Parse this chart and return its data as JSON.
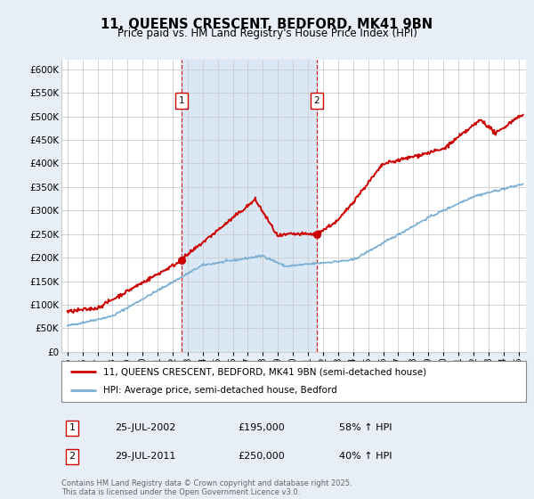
{
  "title": "11, QUEENS CRESCENT, BEDFORD, MK41 9BN",
  "subtitle": "Price paid vs. HM Land Registry's House Price Index (HPI)",
  "legend_line1": "11, QUEENS CRESCENT, BEDFORD, MK41 9BN (semi-detached house)",
  "legend_line2": "HPI: Average price, semi-detached house, Bedford",
  "ann1_date": "25-JUL-2002",
  "ann1_price": "£195,000",
  "ann1_note": "58% ↑ HPI",
  "ann2_date": "29-JUL-2011",
  "ann2_price": "£250,000",
  "ann2_note": "40% ↑ HPI",
  "copyright": "Contains HM Land Registry data © Crown copyright and database right 2025.\nThis data is licensed under the Open Government Licence v3.0.",
  "sale1_year": 2002.57,
  "sale1_price": 195000,
  "sale2_year": 2011.57,
  "sale2_price": 250000,
  "red_color": "#cc0000",
  "blue_color": "#7bafd4",
  "shade_color": "#dae8f5",
  "bg_color": "#e8eef6",
  "plot_bg": "#ffffff",
  "grid_color": "#cccccc",
  "ylim_min": 0,
  "ylim_max": 620000,
  "ytick_step": 50000,
  "xlim_start": 1994.6,
  "xlim_end": 2025.5
}
